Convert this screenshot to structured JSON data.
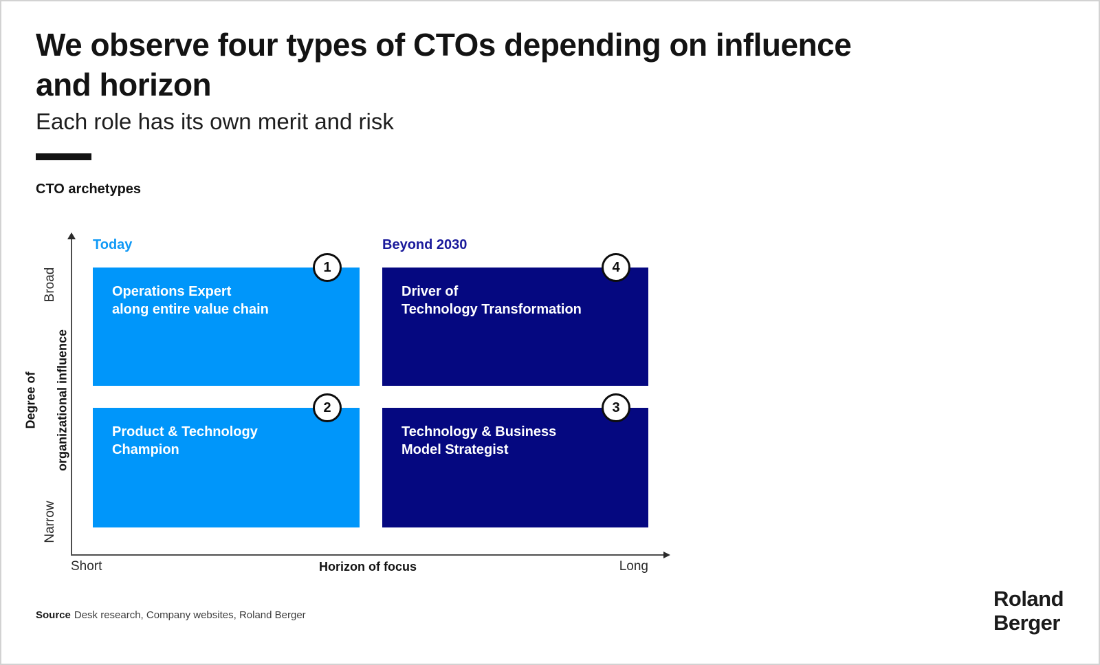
{
  "page": {
    "title_line1": "We observe four types of CTOs depending on influence",
    "title_line2": "and horizon",
    "subtitle": "Each role has its own merit and risk",
    "section_label": "CTO archetypes"
  },
  "chart_data": {
    "type": "quadrant-matrix",
    "title": "CTO archetypes",
    "x_axis": {
      "label": "Horizon of focus",
      "min_label": "Short",
      "max_label": "Long"
    },
    "y_axis": {
      "label_line1": "Degree of",
      "label_line2": "organizational influence",
      "min_label": "Narrow",
      "max_label": "Broad"
    },
    "columns": [
      {
        "label": "Today",
        "color": "#0096fa"
      },
      {
        "label": "Beyond 2030",
        "color": "#1a1a9b"
      }
    ],
    "quadrants": [
      {
        "number": "1",
        "line1": "Operations Expert",
        "line2": "along entire value chain",
        "column": "Today",
        "influence": "Broad",
        "color": "#0096fa"
      },
      {
        "number": "4",
        "line1": "Driver of",
        "line2": "Technology Transformation",
        "column": "Beyond 2030",
        "influence": "Broad",
        "color": "#050880"
      },
      {
        "number": "2",
        "line1": "Product & Technology",
        "line2": "Champion",
        "column": "Today",
        "influence": "Narrow",
        "color": "#0096fa"
      },
      {
        "number": "3",
        "line1": "Technology & Business",
        "line2": "Model Strategist",
        "column": "Beyond 2030",
        "influence": "Narrow",
        "color": "#050880"
      }
    ]
  },
  "footer": {
    "source_label": "Source",
    "source_text": "Desk research, Company websites, Roland Berger",
    "logo_line1": "Roland",
    "logo_line2": "Berger"
  },
  "colors": {
    "accent_light_blue": "#0096fa",
    "accent_navy": "#050880",
    "header_today": "#0f99f6",
    "header_beyond": "#1a1a9b",
    "text_black": "#131313",
    "page_border": "#d2d2d2"
  }
}
